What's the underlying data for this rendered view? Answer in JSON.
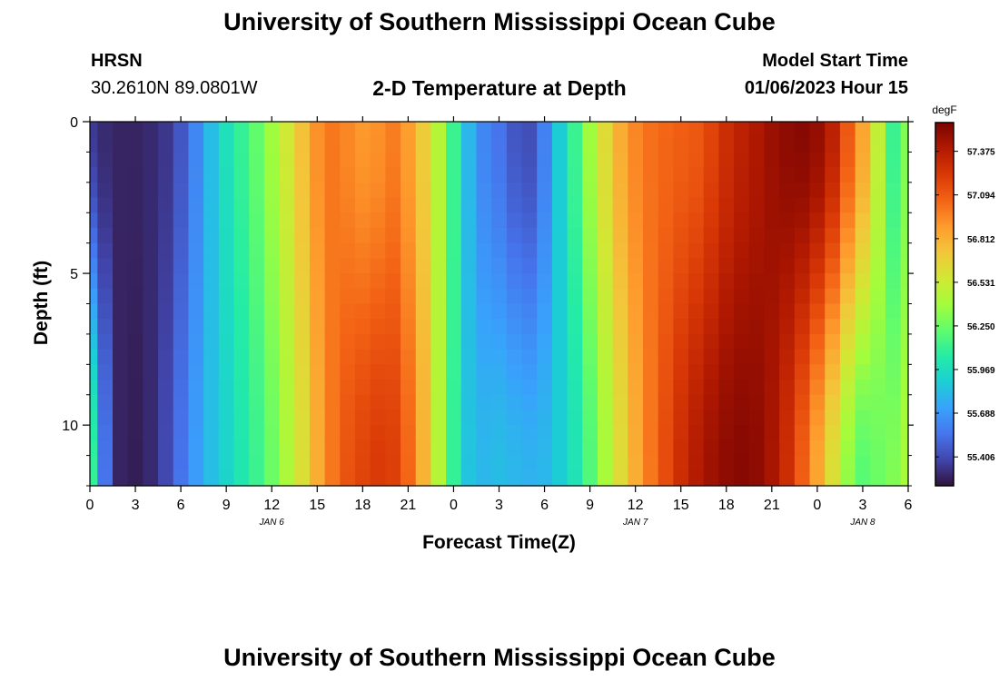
{
  "header": {
    "title": "University of Southern Mississippi Ocean Cube",
    "station": "HRSN",
    "coords": "30.2610N  89.0801W",
    "chart_title": "2-D Temperature at Depth",
    "model_label": "Model Start Time",
    "model_time": "01/06/2023 Hour 15"
  },
  "footer": {
    "title": "University of Southern Mississippi Ocean Cube"
  },
  "colormap": [
    "#30123b",
    "#4145ab",
    "#4675ed",
    "#39a2fc",
    "#1bcfd4",
    "#24eca6",
    "#61fc6c",
    "#a4fc3b",
    "#d1e834",
    "#f3c63a",
    "#fe9b2d",
    "#f36315",
    "#d93806",
    "#b11901",
    "#7a0402"
  ],
  "chart_data": {
    "type": "heatmap",
    "title": "2-D Temperature at Depth",
    "xlabel": "Forecast Time(Z)",
    "ylabel": "Depth (ft)",
    "x_start": "01/06/2023 Hour 0",
    "x_tick_labels": [
      "0",
      "3",
      "6",
      "9",
      "12",
      "15",
      "18",
      "21",
      "0",
      "3",
      "6",
      "9",
      "12",
      "15",
      "18",
      "21",
      "0",
      "3",
      "6"
    ],
    "date_labels": [
      {
        "label": "JAN 6",
        "hour": 12
      },
      {
        "label": "JAN 7",
        "hour": 36
      },
      {
        "label": "JAN 8",
        "hour": 51
      }
    ],
    "xlim_hours": [
      0,
      54
    ],
    "y_ticks": [
      0,
      5,
      10
    ],
    "ylim": [
      0,
      12
    ],
    "colorbar": {
      "unit": "degF",
      "ticks": [
        "57.375",
        "57.094",
        "56.812",
        "56.531",
        "56.250",
        "55.969",
        "55.688",
        "55.406"
      ],
      "range": [
        55.22,
        57.56
      ]
    },
    "sample_hours": [
      0,
      1,
      2,
      3,
      4,
      5,
      6,
      7,
      8,
      9,
      10,
      11,
      12,
      13,
      14,
      15,
      16,
      17,
      18,
      19,
      20,
      21,
      22,
      23,
      24,
      25,
      26,
      27,
      28,
      29,
      30,
      31,
      32,
      33,
      34,
      35,
      36,
      37,
      38,
      39,
      40,
      41,
      42,
      43,
      44,
      45,
      46,
      47,
      48,
      49,
      50,
      51,
      52,
      53,
      54
    ],
    "surface_temps": [
      55.35,
      55.3,
      55.28,
      55.28,
      55.3,
      55.34,
      55.45,
      55.62,
      55.82,
      55.98,
      56.1,
      56.22,
      56.38,
      56.55,
      56.74,
      56.92,
      57.0,
      56.95,
      56.9,
      56.92,
      56.98,
      56.88,
      56.7,
      56.45,
      56.12,
      55.8,
      55.62,
      55.55,
      55.45,
      55.42,
      55.6,
      55.88,
      56.12,
      56.38,
      56.62,
      56.82,
      56.95,
      57.02,
      57.05,
      57.08,
      57.1,
      57.18,
      57.28,
      57.35,
      57.4,
      57.46,
      57.5,
      57.52,
      57.48,
      57.35,
      57.1,
      56.85,
      56.5,
      56.12,
      56.3
    ],
    "bottom_temps": [
      56.1,
      55.55,
      55.28,
      55.26,
      55.3,
      55.4,
      55.55,
      55.7,
      55.82,
      55.92,
      56.02,
      56.12,
      56.25,
      56.42,
      56.6,
      56.82,
      57.0,
      57.12,
      57.18,
      57.22,
      57.2,
      57.05,
      56.8,
      56.45,
      56.1,
      55.85,
      55.8,
      55.82,
      55.8,
      55.78,
      55.8,
      55.88,
      56.0,
      56.18,
      56.4,
      56.62,
      56.82,
      57.0,
      57.15,
      57.28,
      57.38,
      57.45,
      57.5,
      57.52,
      57.5,
      57.42,
      57.28,
      57.08,
      56.85,
      56.6,
      56.35,
      56.2,
      56.25,
      56.3,
      56.4
    ]
  }
}
